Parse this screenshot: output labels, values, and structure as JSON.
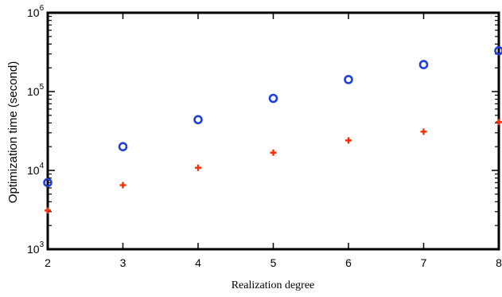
{
  "chart_data": {
    "type": "scatter",
    "title": "",
    "xlabel": "Realization degree",
    "ylabel": "Optimization time (second)",
    "x_scale": "linear",
    "y_scale": "log",
    "xlim": [
      2,
      8
    ],
    "ylim": [
      1000,
      1000000
    ],
    "x_ticks": [
      2,
      3,
      4,
      5,
      6,
      7,
      8
    ],
    "y_ticks": [
      {
        "value": 1000,
        "base": "10",
        "exp": "3"
      },
      {
        "value": 10000,
        "base": "10",
        "exp": "4"
      },
      {
        "value": 100000,
        "base": "10",
        "exp": "5"
      },
      {
        "value": 1000000,
        "base": "10",
        "exp": "6"
      }
    ],
    "grid": false,
    "legend": null,
    "series": [
      {
        "marker": "circle",
        "color": "#1f3fd6",
        "x": [
          2,
          3,
          4,
          5,
          6,
          7,
          8
        ],
        "y": [
          7000,
          20000,
          44000,
          82000,
          142000,
          220000,
          330000
        ]
      },
      {
        "marker": "plus",
        "color": "#ff2a00",
        "x": [
          2,
          3,
          4,
          5,
          6,
          7,
          8
        ],
        "y": [
          3100,
          6500,
          10800,
          16800,
          24000,
          31000,
          41000
        ]
      }
    ]
  }
}
